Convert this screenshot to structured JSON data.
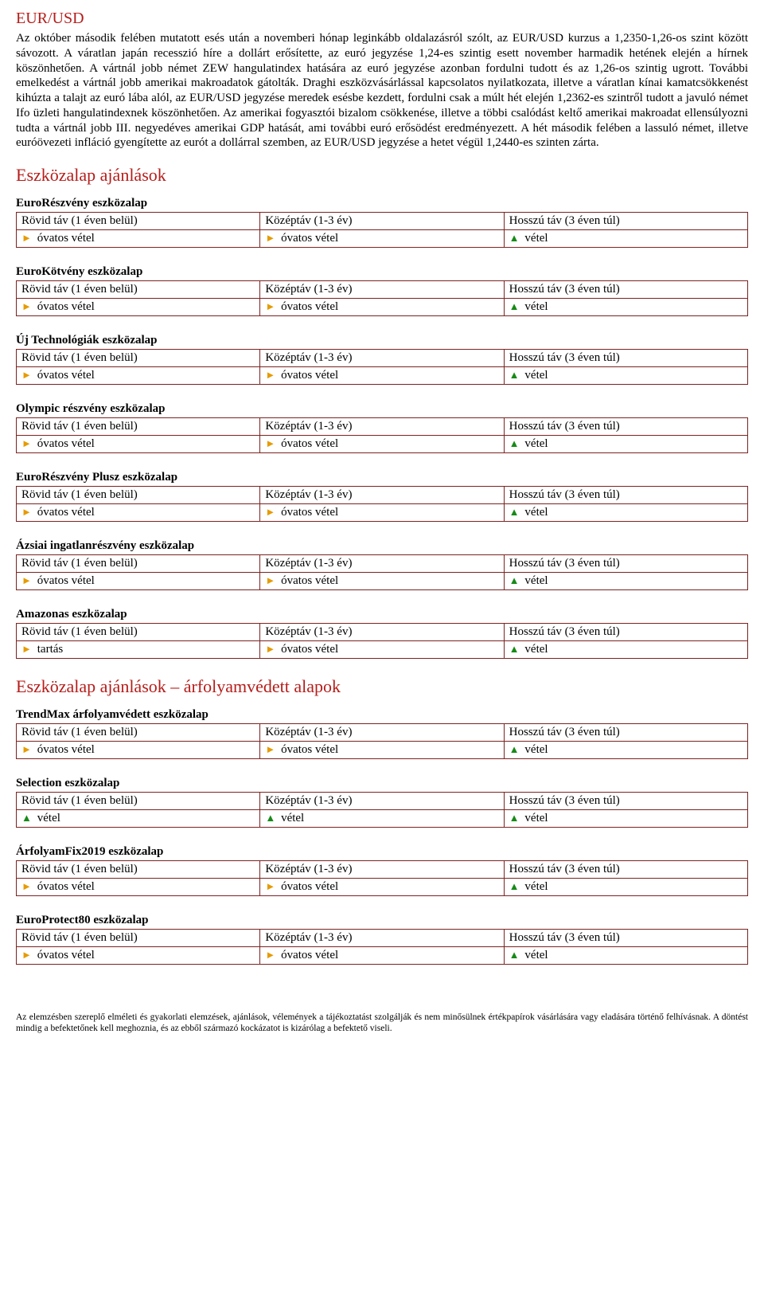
{
  "title": "EUR/USD",
  "body_text": "Az október második felében mutatott esés után a novemberi hónap leginkább oldalazásról szólt, az EUR/USD kurzus a 1,2350-1,26-os szint között sávozott. A váratlan japán recesszió híre a dollárt erősítette, az euró jegyzése 1,24-es szintig esett november harmadik hetének elején a hírnek köszönhetően. A vártnál jobb német ZEW hangulatindex hatására az euró jegyzése azonban fordulni tudott és az 1,26-os szintig ugrott. További emelkedést a vártnál jobb amerikai makroadatok gátolták. Draghi eszközvásárlással kapcsolatos nyilatkozata, illetve a váratlan kínai kamatcsökkenést kihúzta a talajt az euró lába alól, az EUR/USD jegyzése meredek esésbe kezdett, fordulni csak a múlt hét elején 1,2362-es szintről tudott a javuló német Ifo üzleti hangulatindexnek köszönhetően. Az amerikai fogyasztói bizalom csökkenése, illetve a többi csalódást keltő amerikai makroadat ellensúlyozni tudta a vártnál jobb III. negyedéves amerikai GDP hatását, ami további euró erősödést eredményezett. A hét második felében a lassuló német, illetve euróövezeti infláció gyengítette az eurót a dollárral szemben, az EUR/USD jegyzése a hetet végül 1,2440-es szinten zárta.",
  "section1_title": "Eszközalap ajánlások",
  "section2_title": "Eszközalap ajánlások – árfolyamvédett alapok",
  "headers": {
    "short": "Rövid táv (1 éven belül)",
    "mid": "Középtáv (1-3 év)",
    "long": "Hosszú táv (3 éven túl)"
  },
  "labels": {
    "ovatos": "óvatos vétel",
    "vetel": "vétel",
    "tartas": "tartás"
  },
  "funds1": [
    {
      "name": "EuroRészvény eszközalap",
      "short": "ovatos",
      "mid": "ovatos",
      "long": "vetel"
    },
    {
      "name": "EuroKötvény eszközalap",
      "short": "ovatos",
      "mid": "ovatos",
      "long": "vetel"
    },
    {
      "name": "Új Technológiák eszközalap",
      "short": "ovatos",
      "mid": "ovatos",
      "long": "vetel"
    },
    {
      "name": "Olympic részvény eszközalap",
      "short": "ovatos",
      "mid": "ovatos",
      "long": "vetel"
    },
    {
      "name": "EuroRészvény Plusz eszközalap",
      "short": "ovatos",
      "mid": "ovatos",
      "long": "vetel"
    },
    {
      "name": "Ázsiai ingatlanrészvény eszközalap",
      "short": "ovatos",
      "mid": "ovatos",
      "long": "vetel"
    },
    {
      "name": "Amazonas eszközalap",
      "short": "tartas",
      "mid": "ovatos",
      "long": "vetel"
    }
  ],
  "funds2": [
    {
      "name": "TrendMax árfolyamvédett eszközalap",
      "short": "ovatos",
      "mid": "ovatos",
      "long": "vetel"
    },
    {
      "name": "Selection eszközalap",
      "short": "vetel",
      "mid": "vetel",
      "long": "vetel"
    },
    {
      "name": "ÁrfolyamFix2019 eszközalap",
      "short": "ovatos",
      "mid": "ovatos",
      "long": "vetel"
    },
    {
      "name": "EuroProtect80 eszközalap",
      "short": "ovatos",
      "mid": "ovatos",
      "long": "vetel"
    }
  ],
  "footer_text": "Az elemzésben szereplő elméleti és gyakorlati elemzések, ajánlások, vélemények a tájékoztatást szolgálják és nem minősülnek értékpapírok vásárlására vagy eladására történő felhívásnak. A döntést mindig a befektetőnek kell meghoznia, és az ebből származó kockázatot is kizárólag a befektető viseli.",
  "colors": {
    "heading": "#b51d1a",
    "border": "#7a2321",
    "amber": "#e69b00",
    "green": "#178a17"
  }
}
